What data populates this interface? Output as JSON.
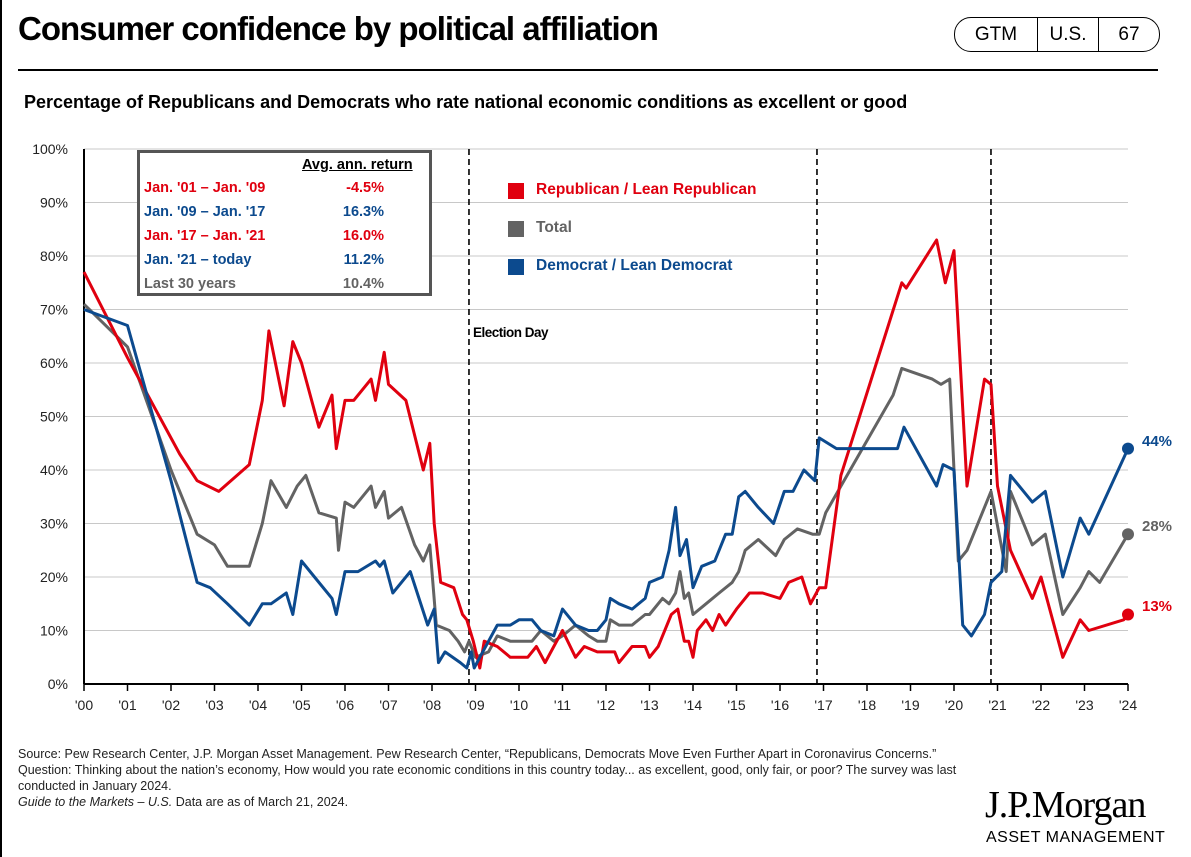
{
  "header": {
    "title": "Consumer confidence by political affiliation",
    "badge": [
      "GTM",
      "U.S.",
      "67"
    ]
  },
  "chart_data": {
    "type": "line",
    "title": "Percentage of Republicans and Democrats who rate national economic conditions as excellent or good",
    "xlabel": "",
    "ylabel": "",
    "ylim": [
      0,
      100
    ],
    "xlim": [
      2000,
      2024
    ],
    "yticks": [
      "0%",
      "10%",
      "20%",
      "30%",
      "40%",
      "50%",
      "60%",
      "70%",
      "80%",
      "90%",
      "100%"
    ],
    "xticks": [
      "'00",
      "'01",
      "'02",
      "'03",
      "'04",
      "'05",
      "'06",
      "'07",
      "'08",
      "'09",
      "'10",
      "'11",
      "'12",
      "'13",
      "'14",
      "'15",
      "'16",
      "'17",
      "'18",
      "'19",
      "'20",
      "'21",
      "'22",
      "'23",
      "'24"
    ],
    "grid": true,
    "legend_position": "top-center",
    "election_days": [
      2008.85,
      2016.85,
      2020.85
    ],
    "election_label": "Election Day",
    "series": [
      {
        "name": "Republican / Lean Republican",
        "color": "#e0000f",
        "end_label": "13%",
        "points": [
          [
            2000.0,
            77
          ],
          [
            2001.0,
            61
          ],
          [
            2002.2,
            43
          ],
          [
            2002.6,
            38
          ],
          [
            2003.1,
            36
          ],
          [
            2003.8,
            41
          ],
          [
            2004.1,
            53
          ],
          [
            2004.25,
            66
          ],
          [
            2004.6,
            52
          ],
          [
            2004.8,
            64
          ],
          [
            2005.0,
            60
          ],
          [
            2005.4,
            48
          ],
          [
            2005.7,
            54
          ],
          [
            2005.8,
            44
          ],
          [
            2006.0,
            53
          ],
          [
            2006.2,
            53
          ],
          [
            2006.6,
            57
          ],
          [
            2006.7,
            53
          ],
          [
            2006.9,
            62
          ],
          [
            2007.0,
            56
          ],
          [
            2007.4,
            53
          ],
          [
            2007.8,
            40
          ],
          [
            2007.95,
            45
          ],
          [
            2008.05,
            30
          ],
          [
            2008.2,
            19
          ],
          [
            2008.5,
            18
          ],
          [
            2008.7,
            13
          ],
          [
            2008.8,
            12
          ],
          [
            2008.95,
            8
          ],
          [
            2009.1,
            3
          ],
          [
            2009.2,
            8
          ],
          [
            2009.5,
            7
          ],
          [
            2009.8,
            5
          ],
          [
            2010.2,
            5
          ],
          [
            2010.4,
            7
          ],
          [
            2010.6,
            4
          ],
          [
            2010.8,
            7
          ],
          [
            2011.0,
            10
          ],
          [
            2011.3,
            5
          ],
          [
            2011.5,
            7
          ],
          [
            2011.8,
            6
          ],
          [
            2012.2,
            6
          ],
          [
            2012.3,
            4
          ],
          [
            2012.6,
            7
          ],
          [
            2012.9,
            7
          ],
          [
            2013.0,
            5
          ],
          [
            2013.2,
            7
          ],
          [
            2013.5,
            13
          ],
          [
            2013.65,
            14
          ],
          [
            2013.8,
            8
          ],
          [
            2013.9,
            8
          ],
          [
            2014.0,
            5
          ],
          [
            2014.1,
            10
          ],
          [
            2014.3,
            12
          ],
          [
            2014.45,
            10
          ],
          [
            2014.6,
            13
          ],
          [
            2014.75,
            11
          ],
          [
            2015.0,
            14
          ],
          [
            2015.3,
            17
          ],
          [
            2015.6,
            17
          ],
          [
            2016.0,
            16
          ],
          [
            2016.2,
            19
          ],
          [
            2016.5,
            20
          ],
          [
            2016.7,
            15
          ],
          [
            2016.9,
            18
          ],
          [
            2017.05,
            18
          ],
          [
            2017.4,
            39
          ],
          [
            2018.8,
            75
          ],
          [
            2018.9,
            74
          ],
          [
            2019.6,
            83
          ],
          [
            2019.8,
            75
          ],
          [
            2020.0,
            81
          ],
          [
            2020.3,
            37
          ],
          [
            2020.7,
            57
          ],
          [
            2020.85,
            56
          ],
          [
            2021.0,
            37
          ],
          [
            2021.3,
            25
          ],
          [
            2021.8,
            16
          ],
          [
            2022.0,
            20
          ],
          [
            2022.5,
            5
          ],
          [
            2022.9,
            12
          ],
          [
            2023.1,
            10
          ],
          [
            2023.9,
            12
          ],
          [
            2024.0,
            13
          ]
        ]
      },
      {
        "name": "Total",
        "color": "#636363",
        "end_label": "28%",
        "points": [
          [
            2000.0,
            71
          ],
          [
            2001.0,
            63
          ],
          [
            2002.0,
            40
          ],
          [
            2002.6,
            28
          ],
          [
            2003.0,
            26
          ],
          [
            2003.3,
            22
          ],
          [
            2003.8,
            22
          ],
          [
            2004.1,
            30
          ],
          [
            2004.3,
            38
          ],
          [
            2004.65,
            33
          ],
          [
            2004.9,
            37
          ],
          [
            2005.1,
            39
          ],
          [
            2005.4,
            32
          ],
          [
            2005.8,
            31
          ],
          [
            2005.85,
            25
          ],
          [
            2006.0,
            34
          ],
          [
            2006.2,
            33
          ],
          [
            2006.6,
            37
          ],
          [
            2006.7,
            33
          ],
          [
            2006.9,
            36
          ],
          [
            2007.0,
            31
          ],
          [
            2007.3,
            33
          ],
          [
            2007.6,
            26
          ],
          [
            2007.8,
            23
          ],
          [
            2007.95,
            26
          ],
          [
            2008.1,
            11
          ],
          [
            2008.4,
            10
          ],
          [
            2008.6,
            8
          ],
          [
            2008.75,
            6
          ],
          [
            2008.85,
            8
          ],
          [
            2009.0,
            5
          ],
          [
            2009.3,
            6
          ],
          [
            2009.5,
            9
          ],
          [
            2009.8,
            8
          ],
          [
            2010.3,
            8
          ],
          [
            2010.5,
            10
          ],
          [
            2010.8,
            8
          ],
          [
            2011.0,
            9
          ],
          [
            2011.3,
            11
          ],
          [
            2011.6,
            9
          ],
          [
            2011.8,
            8
          ],
          [
            2012.0,
            8
          ],
          [
            2012.1,
            12
          ],
          [
            2012.3,
            11
          ],
          [
            2012.6,
            11
          ],
          [
            2012.9,
            13
          ],
          [
            2013.0,
            13
          ],
          [
            2013.3,
            16
          ],
          [
            2013.45,
            15
          ],
          [
            2013.6,
            17
          ],
          [
            2013.7,
            21
          ],
          [
            2013.8,
            16
          ],
          [
            2013.9,
            17
          ],
          [
            2014.0,
            13
          ],
          [
            2014.3,
            15
          ],
          [
            2014.6,
            17
          ],
          [
            2014.9,
            19
          ],
          [
            2015.05,
            21
          ],
          [
            2015.2,
            25
          ],
          [
            2015.5,
            27
          ],
          [
            2015.9,
            24
          ],
          [
            2016.1,
            27
          ],
          [
            2016.4,
            29
          ],
          [
            2016.75,
            28
          ],
          [
            2016.9,
            28
          ],
          [
            2017.05,
            32
          ],
          [
            2017.4,
            37
          ],
          [
            2018.6,
            54
          ],
          [
            2018.8,
            59
          ],
          [
            2019.5,
            57
          ],
          [
            2019.7,
            56
          ],
          [
            2019.9,
            57
          ],
          [
            2020.1,
            23
          ],
          [
            2020.3,
            25
          ],
          [
            2020.85,
            36
          ],
          [
            2021.2,
            21
          ],
          [
            2021.3,
            36
          ],
          [
            2021.8,
            26
          ],
          [
            2022.1,
            28
          ],
          [
            2022.5,
            13
          ],
          [
            2022.9,
            18
          ],
          [
            2023.1,
            21
          ],
          [
            2023.35,
            19
          ],
          [
            2024.0,
            28
          ]
        ]
      },
      {
        "name": "Democrat / Lean Democrat",
        "color": "#0c4a8e",
        "end_label": "44%",
        "points": [
          [
            2000.0,
            70
          ],
          [
            2001.0,
            67
          ],
          [
            2002.0,
            38
          ],
          [
            2002.6,
            19
          ],
          [
            2002.9,
            18
          ],
          [
            2003.3,
            15
          ],
          [
            2003.8,
            11
          ],
          [
            2004.1,
            15
          ],
          [
            2004.3,
            15
          ],
          [
            2004.65,
            17
          ],
          [
            2004.8,
            13
          ],
          [
            2005.0,
            23
          ],
          [
            2005.3,
            20
          ],
          [
            2005.7,
            16
          ],
          [
            2005.8,
            13
          ],
          [
            2006.0,
            21
          ],
          [
            2006.3,
            21
          ],
          [
            2006.7,
            23
          ],
          [
            2006.8,
            22
          ],
          [
            2006.9,
            23
          ],
          [
            2007.1,
            17
          ],
          [
            2007.5,
            21
          ],
          [
            2007.9,
            11
          ],
          [
            2008.05,
            14
          ],
          [
            2008.15,
            4
          ],
          [
            2008.3,
            6
          ],
          [
            2008.65,
            4
          ],
          [
            2008.8,
            3
          ],
          [
            2008.9,
            6
          ],
          [
            2008.97,
            3
          ],
          [
            2009.1,
            5
          ],
          [
            2009.5,
            11
          ],
          [
            2009.8,
            11
          ],
          [
            2010.0,
            12
          ],
          [
            2010.3,
            12
          ],
          [
            2010.5,
            10
          ],
          [
            2010.8,
            9
          ],
          [
            2011.0,
            14
          ],
          [
            2011.3,
            11
          ],
          [
            2011.6,
            10
          ],
          [
            2011.8,
            10
          ],
          [
            2012.0,
            12
          ],
          [
            2012.1,
            16
          ],
          [
            2012.3,
            15
          ],
          [
            2012.6,
            14
          ],
          [
            2012.9,
            16
          ],
          [
            2013.0,
            19
          ],
          [
            2013.3,
            20
          ],
          [
            2013.45,
            25
          ],
          [
            2013.6,
            33
          ],
          [
            2013.7,
            24
          ],
          [
            2013.85,
            27
          ],
          [
            2014.0,
            18
          ],
          [
            2014.2,
            22
          ],
          [
            2014.5,
            23
          ],
          [
            2014.75,
            28
          ],
          [
            2014.9,
            28
          ],
          [
            2015.05,
            35
          ],
          [
            2015.2,
            36
          ],
          [
            2015.5,
            33
          ],
          [
            2015.85,
            30
          ],
          [
            2016.1,
            36
          ],
          [
            2016.3,
            36
          ],
          [
            2016.55,
            40
          ],
          [
            2016.8,
            38
          ],
          [
            2016.9,
            46
          ],
          [
            2017.3,
            44
          ],
          [
            2018.7,
            44
          ],
          [
            2018.85,
            48
          ],
          [
            2019.6,
            37
          ],
          [
            2019.75,
            41
          ],
          [
            2020.0,
            40
          ],
          [
            2020.2,
            11
          ],
          [
            2020.4,
            9
          ],
          [
            2020.7,
            13
          ],
          [
            2020.85,
            19
          ],
          [
            2021.1,
            21
          ],
          [
            2021.3,
            39
          ],
          [
            2021.8,
            34
          ],
          [
            2022.1,
            36
          ],
          [
            2022.5,
            20
          ],
          [
            2022.9,
            31
          ],
          [
            2023.1,
            28
          ],
          [
            2024.0,
            44
          ]
        ]
      }
    ]
  },
  "returns_table": {
    "header": "Avg. ann. return",
    "rows": [
      {
        "label": "Jan. '01 – Jan. '09",
        "value": "-4.5%",
        "color": "#e0000f"
      },
      {
        "label": "Jan. '09 – Jan. '17",
        "value": "16.3%",
        "color": "#0c4a8e"
      },
      {
        "label": "Jan. '17 – Jan. '21",
        "value": "16.0%",
        "color": "#e0000f"
      },
      {
        "label": "Jan. '21 – today",
        "value": "11.2%",
        "color": "#0c4a8e"
      },
      {
        "label": "Last 30 years",
        "value": "10.4%",
        "color": "#636363"
      }
    ]
  },
  "footer": {
    "source": "Source: Pew Research Center, J.P. Morgan Asset Management. Pew Research Center, “Republicans, Democrats Move Even Further Apart in Coronavirus Concerns.” Question: Thinking about the nation’s economy, How would you rate economic conditions in this country today... as excellent, good, only fair, or poor? The survey was last conducted in January 2024.",
    "guide": "Guide to the Markets – U.S.",
    "asof": " Data are as of March 21, 2024."
  },
  "brand": {
    "logo": "J.P.Morgan",
    "sub": "ASSET MANAGEMENT"
  }
}
